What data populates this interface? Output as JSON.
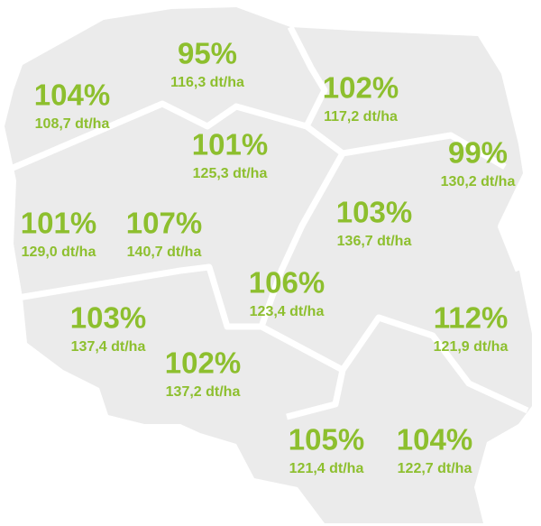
{
  "regions": [
    {
      "percent": "95%",
      "yield": "116,3 dt/ha"
    },
    {
      "percent": "104%",
      "yield": "108,7 dt/ha"
    },
    {
      "percent": "102%",
      "yield": "117,2 dt/ha"
    },
    {
      "percent": "101%",
      "yield": "125,3 dt/ha"
    },
    {
      "percent": "99%",
      "yield": "130,2 dt/ha"
    },
    {
      "percent": "103%",
      "yield": "136,7 dt/ha"
    },
    {
      "percent": "101%",
      "yield": "129,0 dt/ha"
    },
    {
      "percent": "107%",
      "yield": "140,7 dt/ha"
    },
    {
      "percent": "106%",
      "yield": "123,4 dt/ha"
    },
    {
      "percent": "112%",
      "yield": "121,9 dt/ha"
    },
    {
      "percent": "103%",
      "yield": "137,4 dt/ha"
    },
    {
      "percent": "102%",
      "yield": "137,2 dt/ha"
    },
    {
      "percent": "105%",
      "yield": "121,4 dt/ha"
    },
    {
      "percent": "104%",
      "yield": "122,7 dt/ha"
    }
  ]
}
